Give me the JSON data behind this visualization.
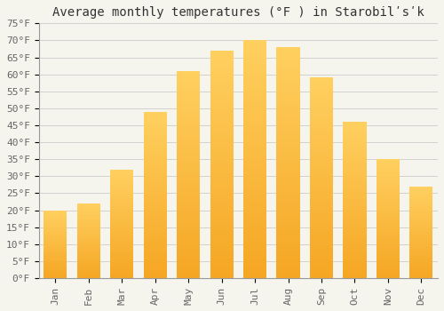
{
  "title": "Average monthly temperatures (°F ) in Starobilʹsʹk",
  "months": [
    "Jan",
    "Feb",
    "Mar",
    "Apr",
    "May",
    "Jun",
    "Jul",
    "Aug",
    "Sep",
    "Oct",
    "Nov",
    "Dec"
  ],
  "values": [
    20,
    22,
    32,
    49,
    61,
    67,
    70,
    68,
    59,
    46,
    35,
    27
  ],
  "ylim": [
    0,
    75
  ],
  "yticks": [
    0,
    5,
    10,
    15,
    20,
    25,
    30,
    35,
    40,
    45,
    50,
    55,
    60,
    65,
    70,
    75
  ],
  "bar_color_bottom": "#F5A623",
  "bar_color_top": "#FFD060",
  "background_color": "#F5F5EE",
  "grid_color": "#CCCCCC",
  "title_fontsize": 10,
  "tick_fontsize": 8,
  "bar_width": 0.7
}
